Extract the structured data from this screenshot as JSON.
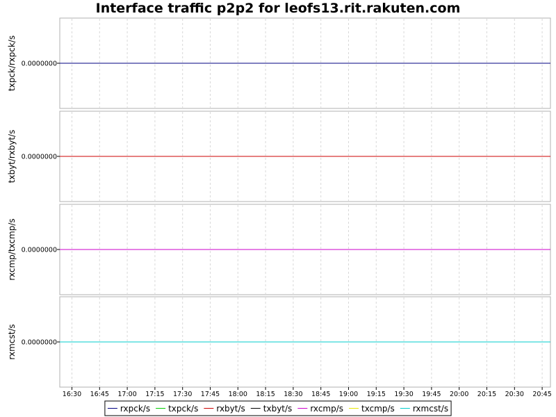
{
  "chart_data": {
    "type": "line",
    "title": "Interface traffic p2p2 for leofs13.rit.rakuten.com",
    "x_ticks": [
      "16:30",
      "16:45",
      "17:00",
      "17:15",
      "17:30",
      "17:45",
      "18:00",
      "18:15",
      "18:30",
      "18:45",
      "19:00",
      "19:15",
      "19:30",
      "19:45",
      "20:00",
      "20:15",
      "20:30",
      "20:45"
    ],
    "grid": true,
    "legend_placement": "bottom-center",
    "panels": [
      {
        "ylabel": "txpck/rxpck/s",
        "y_ticks": [
          "0.0000000"
        ],
        "series": [
          {
            "name": "rxpck/s",
            "color": "#000080",
            "values": [
              0,
              0,
              0,
              0,
              0,
              0,
              0,
              0,
              0,
              0,
              0,
              0,
              0,
              0,
              0,
              0,
              0,
              0
            ]
          },
          {
            "name": "txpck/s",
            "color": "#00cc00",
            "values": [
              0,
              0,
              0,
              0,
              0,
              0,
              0,
              0,
              0,
              0,
              0,
              0,
              0,
              0,
              0,
              0,
              0,
              0
            ]
          }
        ]
      },
      {
        "ylabel": "txbyt/rxbyt/s",
        "y_ticks": [
          "0.0000000"
        ],
        "series": [
          {
            "name": "rxbyt/s",
            "color": "#cc0000",
            "values": [
              0,
              0,
              0,
              0,
              0,
              0,
              0,
              0,
              0,
              0,
              0,
              0,
              0,
              0,
              0,
              0,
              0,
              0
            ]
          },
          {
            "name": "txbyt/s",
            "color": "#000000",
            "values": [
              0,
              0,
              0,
              0,
              0,
              0,
              0,
              0,
              0,
              0,
              0,
              0,
              0,
              0,
              0,
              0,
              0,
              0
            ]
          }
        ]
      },
      {
        "ylabel": "rxcmp/txcmp/s",
        "y_ticks": [
          "0.0000000"
        ],
        "series": [
          {
            "name": "rxcmp/s",
            "color": "#cc00cc",
            "values": [
              0,
              0,
              0,
              0,
              0,
              0,
              0,
              0,
              0,
              0,
              0,
              0,
              0,
              0,
              0,
              0,
              0,
              0
            ]
          },
          {
            "name": "txcmp/s",
            "color": "#e6e600",
            "values": [
              0,
              0,
              0,
              0,
              0,
              0,
              0,
              0,
              0,
              0,
              0,
              0,
              0,
              0,
              0,
              0,
              0,
              0
            ]
          }
        ]
      },
      {
        "ylabel": "rxmcst/s",
        "y_ticks": [
          "0.0000000"
        ],
        "series": [
          {
            "name": "rxmcst/s",
            "color": "#00cccc",
            "values": [
              0,
              0,
              0,
              0,
              0,
              0,
              0,
              0,
              0,
              0,
              0,
              0,
              0,
              0,
              0,
              0,
              0,
              0
            ]
          }
        ]
      }
    ],
    "legend": [
      {
        "name": "rxpck/s",
        "color": "#000080"
      },
      {
        "name": "txpck/s",
        "color": "#00cc00"
      },
      {
        "name": "rxbyt/s",
        "color": "#cc0000"
      },
      {
        "name": "txbyt/s",
        "color": "#000000"
      },
      {
        "name": "rxcmp/s",
        "color": "#cc00cc"
      },
      {
        "name": "txcmp/s",
        "color": "#e6e600"
      },
      {
        "name": "rxmcst/s",
        "color": "#00cccc"
      }
    ]
  }
}
